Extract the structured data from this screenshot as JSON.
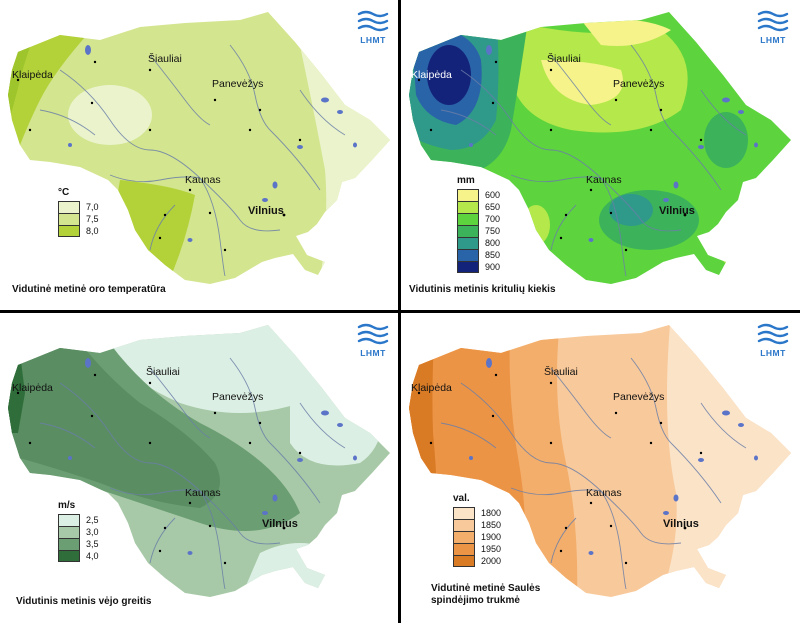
{
  "logo": {
    "text": "LHMT",
    "color": "#2a76c9"
  },
  "cities": {
    "klaipeda": "Klaipėda",
    "siauliai": "Šiauliai",
    "panevezys": "Panevėžys",
    "kaunas": "Kaunas",
    "vilnius": "Vilnius"
  },
  "panels": [
    {
      "caption": "Vidutinė metinė oro temperatūra",
      "legend": {
        "unit": "°C",
        "items": [
          {
            "label": "7,0",
            "color": "#eaf3cc"
          },
          {
            "label": "7,5",
            "color": "#d3e58f"
          },
          {
            "label": "8,0",
            "color": "#b3d23a"
          }
        ]
      }
    },
    {
      "caption": "Vidutinis metinis kritulių kiekis",
      "legend": {
        "unit": "mm",
        "items": [
          {
            "label": "600",
            "color": "#f5f38a"
          },
          {
            "label": "650",
            "color": "#b5e84a"
          },
          {
            "label": "700",
            "color": "#5dd43d"
          },
          {
            "label": "750",
            "color": "#3cb35a"
          },
          {
            "label": "800",
            "color": "#2f9a8a"
          },
          {
            "label": "850",
            "color": "#2a64a8"
          },
          {
            "label": "900",
            "color": "#14237a"
          }
        ]
      }
    },
    {
      "caption": "Vidutinis metinis vėjo greitis",
      "legend": {
        "unit": "m/s",
        "items": [
          {
            "label": "2,5",
            "color": "#dcefe4"
          },
          {
            "label": "3,0",
            "color": "#a7c9a7"
          },
          {
            "label": "3,5",
            "color": "#6b9e72"
          },
          {
            "label": "4,0",
            "color": "#2f6e3a"
          }
        ]
      }
    },
    {
      "caption": "Vidutinė metinė Saulės spindėjimo trukmė",
      "legend": {
        "unit": "val.",
        "items": [
          {
            "label": "1800",
            "color": "#fbe3c8"
          },
          {
            "label": "1850",
            "color": "#f8c99a"
          },
          {
            "label": "1900",
            "color": "#f3ae6b"
          },
          {
            "label": "1950",
            "color": "#ec9446"
          },
          {
            "label": "2000",
            "color": "#d97a25"
          }
        ]
      }
    }
  ]
}
